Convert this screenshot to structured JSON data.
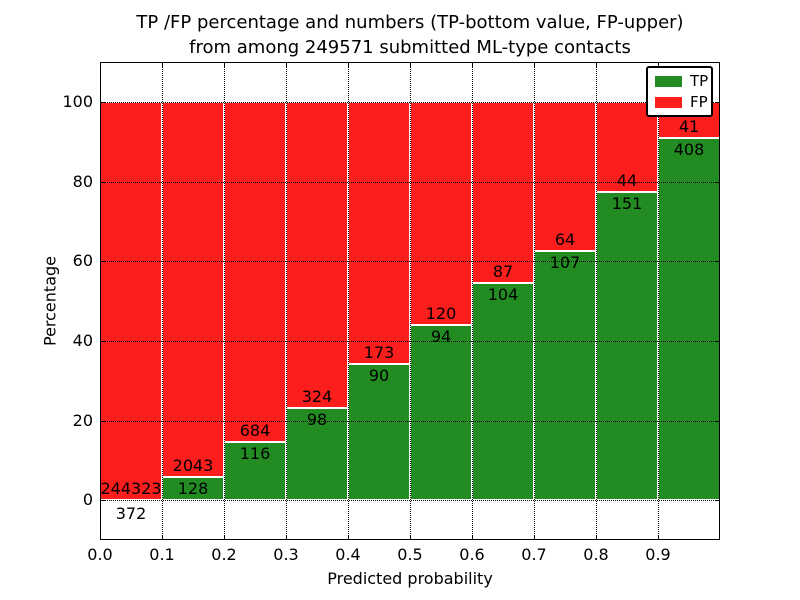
{
  "title": {
    "line1": "TP /FP percentage and numbers (TP-bottom value, FP-upper)",
    "line2": "from among 249571 submitted ML-type contacts"
  },
  "chart_data": {
    "type": "bar",
    "stacked": true,
    "normalized": "each bar stack scaled to 100%",
    "title": "TP /FP percentage and numbers (TP-bottom value, FP-upper) from among 249571 submitted ML-type contacts",
    "total_submitted_contacts": 249571,
    "xlabel": "Predicted probability",
    "ylabel": "Percentage",
    "xtick_labels": [
      "0.0",
      "0.1",
      "0.2",
      "0.3",
      "0.4",
      "0.5",
      "0.6",
      "0.7",
      "0.8",
      "0.9"
    ],
    "x_bin_edges": [
      0.0,
      0.1,
      0.2,
      0.3,
      0.4,
      0.5,
      0.6,
      0.7,
      0.8,
      0.9,
      1.0
    ],
    "yticks": [
      0,
      20,
      40,
      60,
      80,
      100
    ],
    "ylim": [
      -10,
      110
    ],
    "xlim": [
      0.0,
      1.0
    ],
    "grid": true,
    "annotation_note": "TP count printed below segment boundary, FP count printed above it",
    "series": [
      {
        "name": "TP",
        "color": "#228b22",
        "position": "bottom",
        "values": [
          372,
          128,
          116,
          98,
          90,
          94,
          104,
          107,
          151,
          408
        ]
      },
      {
        "name": "FP",
        "color": "#fc1d1d",
        "position": "top",
        "values": [
          244323,
          2043,
          684,
          324,
          173,
          120,
          87,
          64,
          44,
          41
        ]
      }
    ],
    "tp_percent_per_bin": [
      0.15,
      5.9,
      14.5,
      23.2,
      34.2,
      43.9,
      54.5,
      62.6,
      77.4,
      90.9
    ],
    "legend": {
      "position": "upper right",
      "entries": [
        "TP",
        "FP"
      ]
    }
  }
}
